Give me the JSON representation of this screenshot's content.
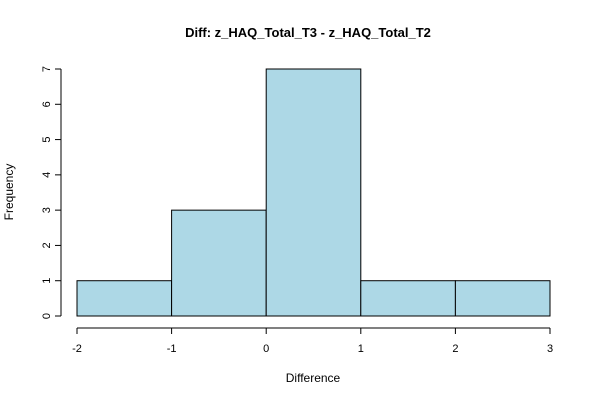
{
  "chart_data": {
    "type": "bar",
    "title": "Diff: z_HAQ_Total_T3 - z_HAQ_Total_T2",
    "xlabel": "Difference",
    "ylabel": "Frequency",
    "bins": [
      {
        "start": -2,
        "end": -1,
        "count": 1
      },
      {
        "start": -1,
        "end": 0,
        "count": 3
      },
      {
        "start": 0,
        "end": 1,
        "count": 7
      },
      {
        "start": 1,
        "end": 2,
        "count": 1
      },
      {
        "start": 2,
        "end": 3,
        "count": 1
      }
    ],
    "xlim": [
      -2,
      3
    ],
    "ylim": [
      0,
      7
    ],
    "x_ticks": [
      "-2",
      "-1",
      "0",
      "1",
      "2",
      "3"
    ],
    "y_ticks": [
      "0",
      "1",
      "2",
      "3",
      "4",
      "5",
      "6",
      "7"
    ],
    "bar_color": "#add8e6",
    "grid": false,
    "legend": "none"
  }
}
